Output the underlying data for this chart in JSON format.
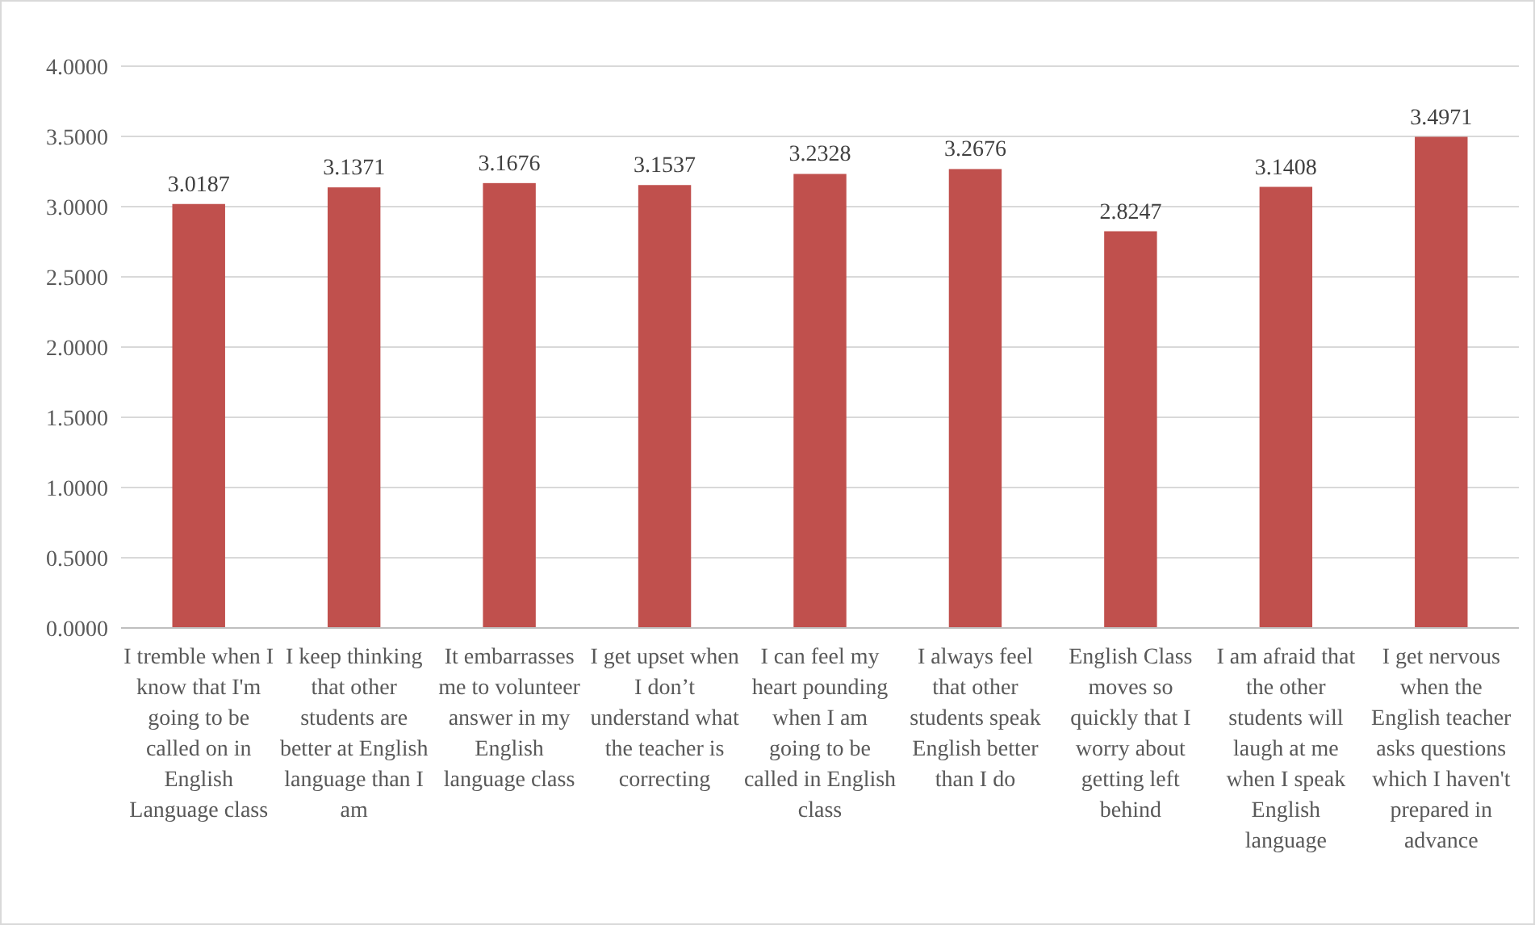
{
  "chart_data": {
    "type": "bar",
    "categories": [
      "I tremble when I know that I'm going to be called on in English Language class",
      "I keep thinking that other students are better at English language than I am",
      "It embarrasses me to volunteer answer in my English language class",
      "I get upset when I don’t understand what the teacher is correcting",
      "I can feel my heart pounding when I am going to be called in English class",
      "I always feel that other students speak English better than I do",
      "English Class moves so quickly that I worry about getting left behind",
      "I am afraid that the other students will laugh at me when I speak English language",
      "I get nervous when the English teacher asks questions which I haven't prepared in advance"
    ],
    "values": [
      3.0187,
      3.1371,
      3.1676,
      3.1537,
      3.2328,
      3.2676,
      2.8247,
      3.1408,
      3.4971
    ],
    "color": "#c0504d",
    "ylim": [
      0,
      4
    ],
    "yticks": [
      {
        "value": 0,
        "label": "0.0000"
      },
      {
        "value": 0.5,
        "label": "0.5000"
      },
      {
        "value": 1,
        "label": "1.0000"
      },
      {
        "value": 1.5,
        "label": "1.5000"
      },
      {
        "value": 2,
        "label": "2.0000"
      },
      {
        "value": 2.5,
        "label": "2.5000"
      },
      {
        "value": 3,
        "label": "3.0000"
      },
      {
        "value": 3.5,
        "label": "3.5000"
      },
      {
        "value": 4,
        "label": "4.0000"
      }
    ],
    "grid": "y",
    "data_labels": true
  }
}
